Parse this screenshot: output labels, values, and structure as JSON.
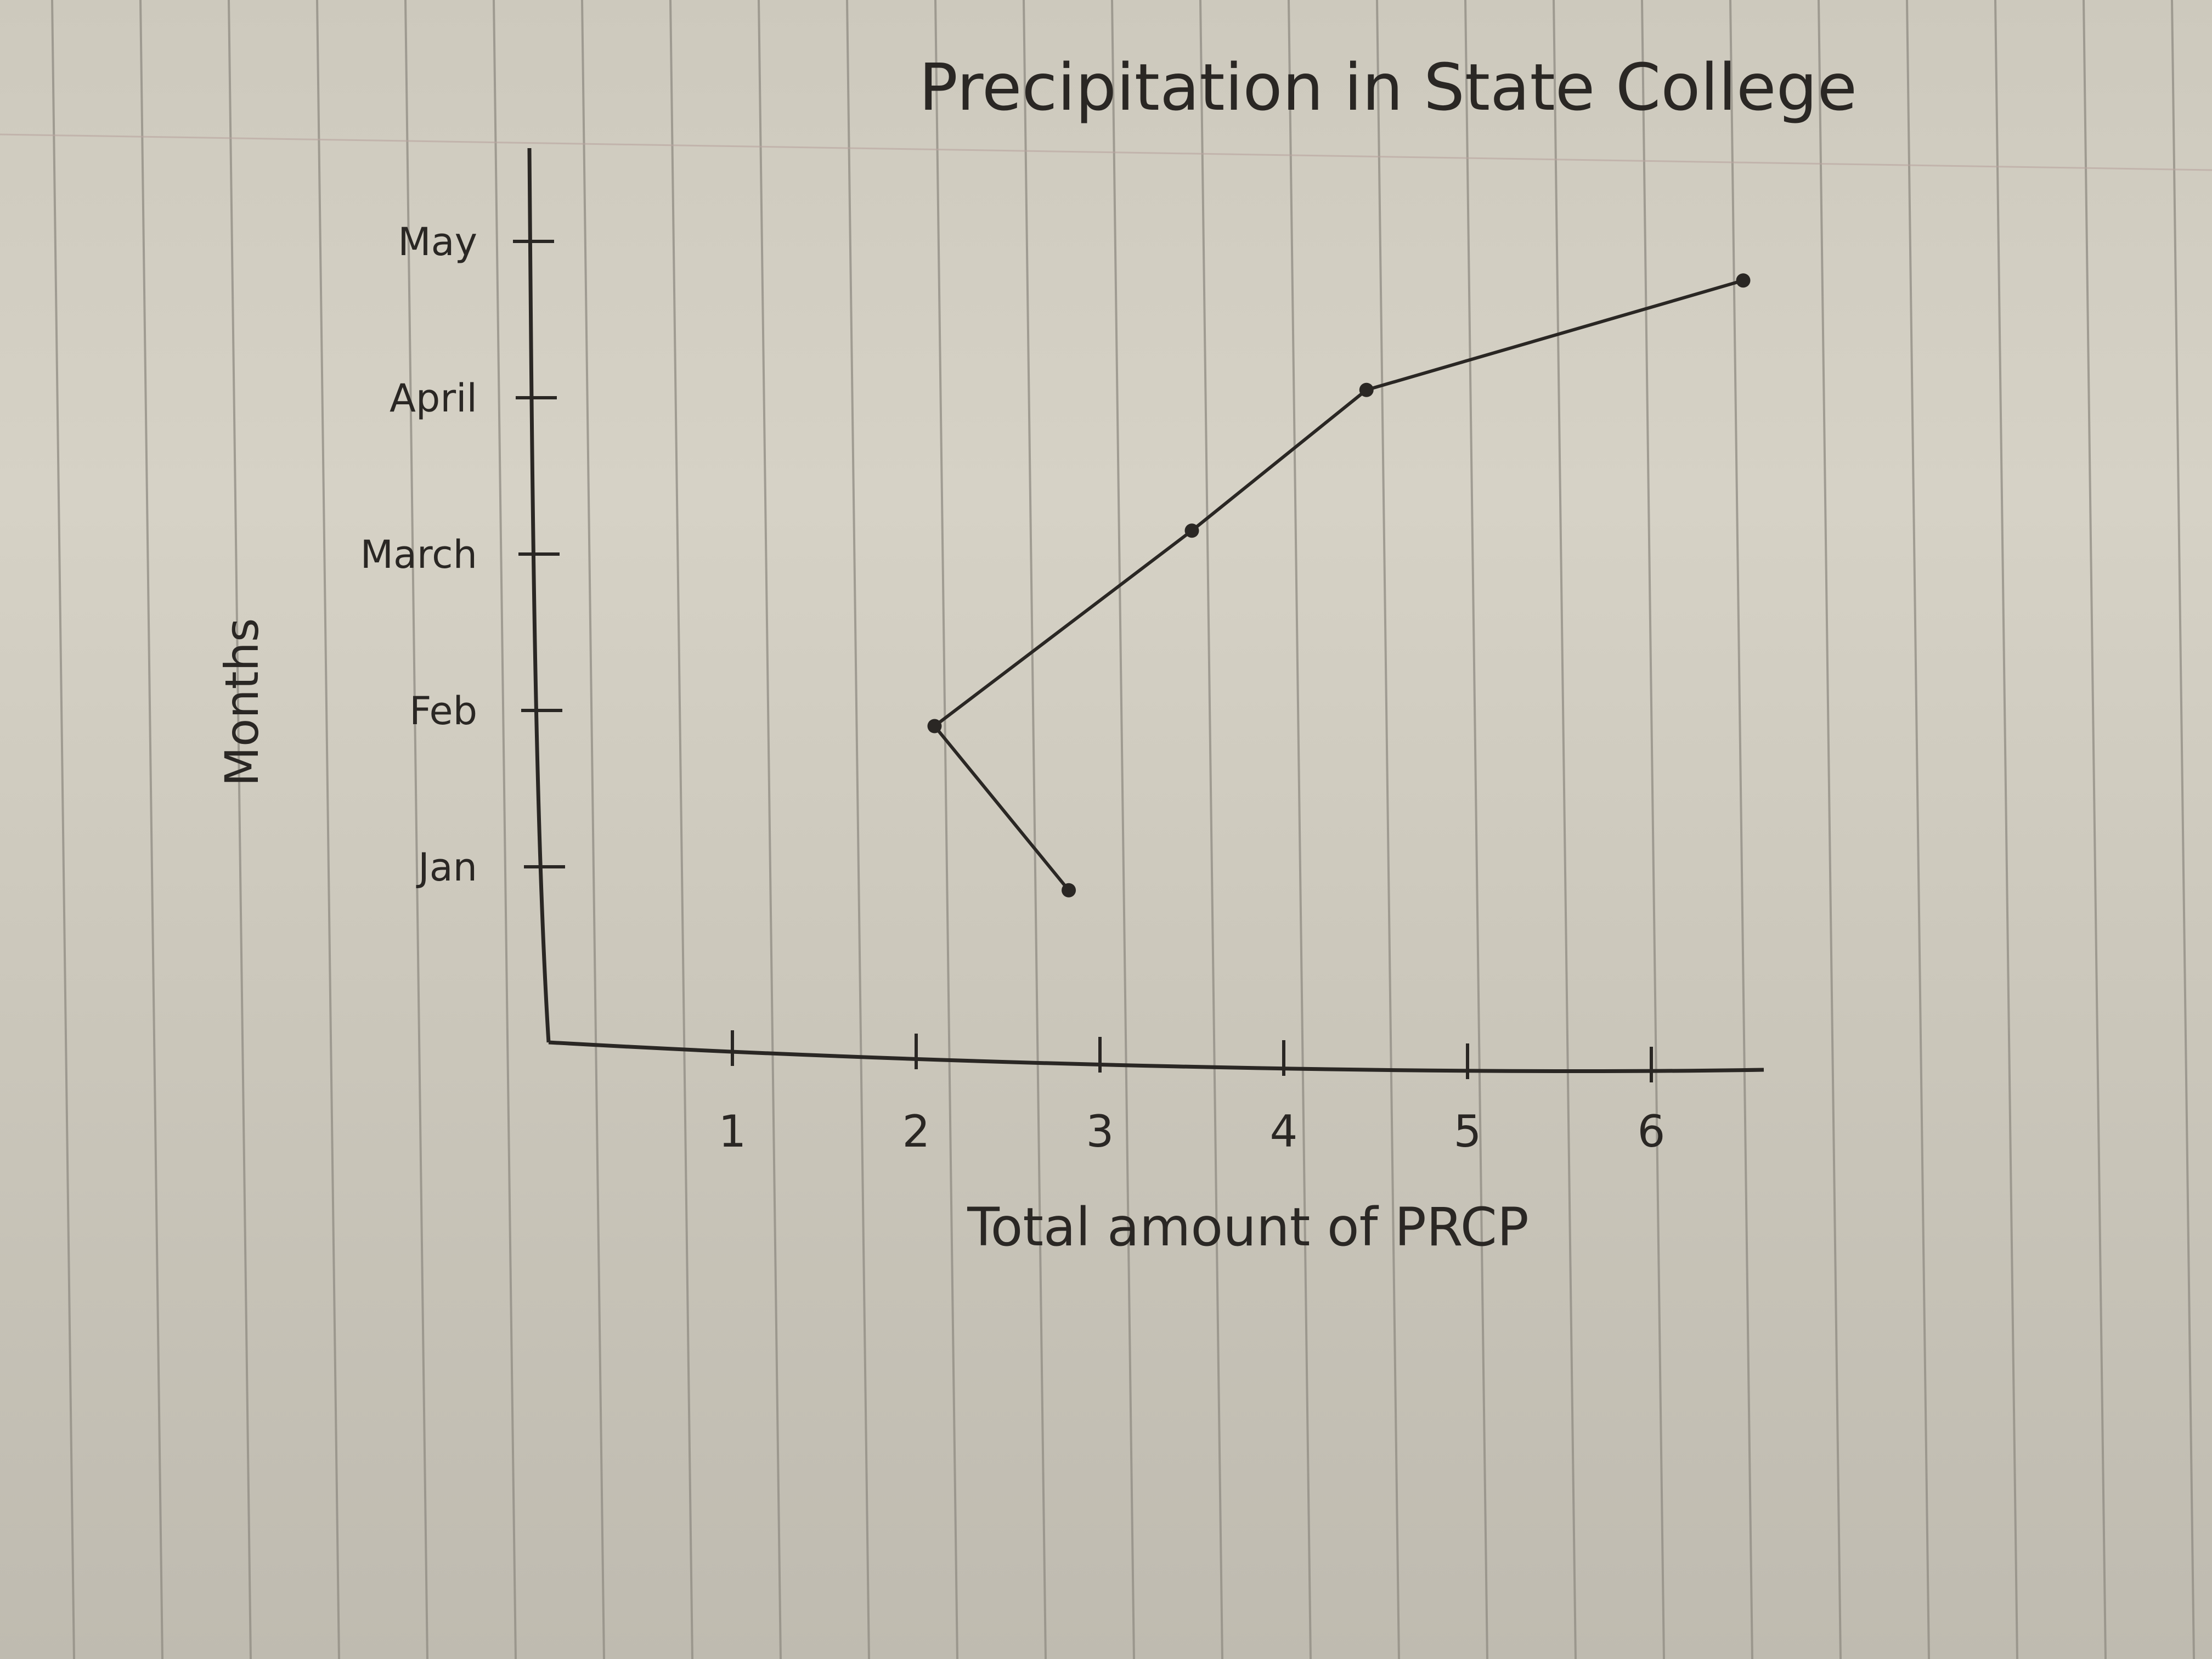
{
  "chart_data": {
    "type": "line",
    "title": "Precipitation in State College",
    "xlabel": "Total amount of PRCP",
    "ylabel": "Months",
    "x_ticks": [
      "1",
      "2",
      "3",
      "4",
      "5",
      "6"
    ],
    "categories": [
      "Jan",
      "Feb",
      "March",
      "April",
      "May"
    ],
    "xlim": [
      0.3,
      6.9
    ],
    "series": [
      {
        "points": [
          {
            "x": 2.83,
            "y": 0.85
          },
          {
            "x": 2.1,
            "y": 1.9
          },
          {
            "x": 3.5,
            "y": 3.15
          },
          {
            "x": 4.45,
            "y": 4.05
          },
          {
            "x": 6.5,
            "y": 4.75
          }
        ]
      }
    ],
    "grid": false,
    "colors": {
      "ink": "#2a2724",
      "rule_lines": "#8f8b82",
      "paper": "#d2cec2"
    }
  }
}
